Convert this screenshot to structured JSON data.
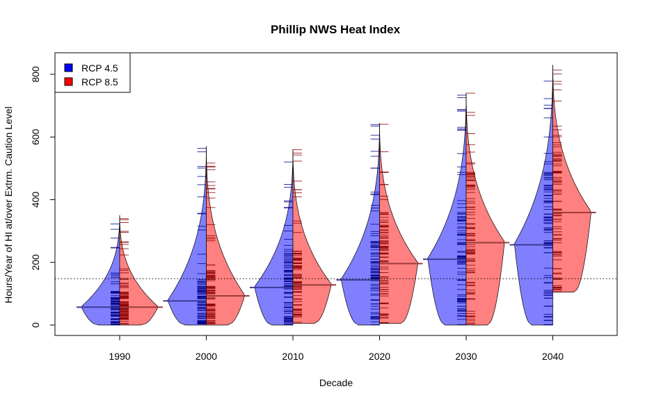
{
  "chart_data": {
    "type": "violin",
    "title": "Phillip NWS Heat Index",
    "xlabel": "Decade",
    "ylabel": "Hours/Year of HI at/over Extrm. Caution Level",
    "categories": [
      "1990",
      "2000",
      "2010",
      "2020",
      "2030",
      "2040"
    ],
    "ylim": [
      -35,
      860
    ],
    "yticks": [
      0,
      200,
      400,
      600,
      800
    ],
    "reference_line": 148,
    "grid": false,
    "legend": {
      "position": "top-left",
      "entries": [
        "RCP 4.5",
        "RCP 8.5"
      ]
    },
    "series": [
      {
        "name": "RCP 4.5",
        "color": "#0000ff",
        "fill": "#8080ff",
        "median": [
          57,
          77,
          120,
          144,
          210,
          256
        ],
        "max": [
          350,
          570,
          560,
          645,
          740,
          830
        ],
        "min": [
          0,
          0,
          0,
          0,
          0,
          0
        ]
      },
      {
        "name": "RCP 8.5",
        "color": "#ff0000",
        "fill": "#ff8080",
        "median": [
          57,
          93,
          128,
          196,
          263,
          359
        ],
        "max": [
          350,
          570,
          560,
          645,
          740,
          830
        ],
        "min": [
          0,
          0,
          5,
          5,
          0,
          105
        ]
      }
    ]
  }
}
